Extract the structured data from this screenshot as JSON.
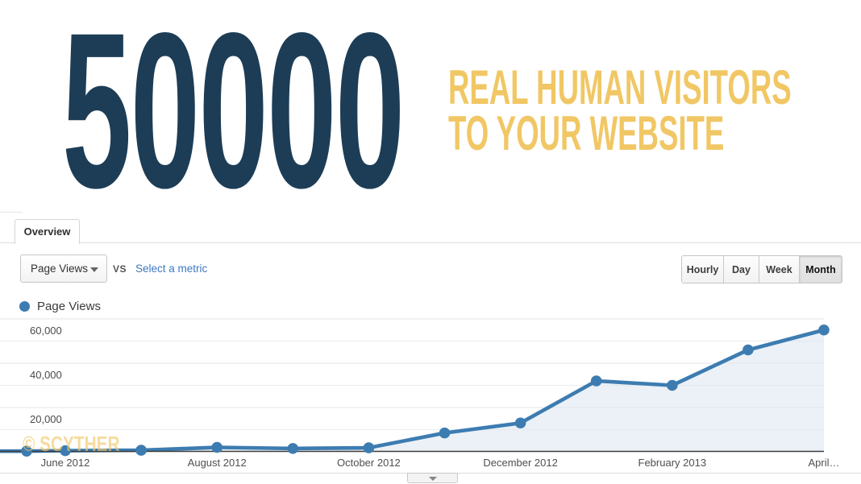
{
  "hero": {
    "number": "50000",
    "tagline_line1": "REAL HUMAN VISITORS",
    "tagline_line2": "TO YOUR WEBSITE",
    "number_color": "#1d3d56",
    "tagline_color": "#f1c765"
  },
  "watermark": "© SCYTHER",
  "watermark_color": "rgba(242,199,106,0.65)",
  "panel": {
    "tab_label": "Overview",
    "metric_dropdown": {
      "value": "Page Views"
    },
    "vs_label": "VS",
    "select_metric_link": "Select a metric",
    "granularity_buttons": [
      {
        "label": "Hourly",
        "selected": false
      },
      {
        "label": "Day",
        "selected": false
      },
      {
        "label": "Week",
        "selected": false
      },
      {
        "label": "Month",
        "selected": true
      }
    ],
    "legend_label": "Page Views"
  },
  "chart_data": {
    "type": "area",
    "title": "Page Views over time",
    "series": [
      {
        "name": "Page Views",
        "values": [
          300,
          500,
          700,
          2000,
          1500,
          1800,
          8500,
          13000,
          32000,
          30000,
          46000,
          55000
        ]
      }
    ],
    "x": [
      "May 2012",
      "June 2012",
      "July 2012",
      "August 2012",
      "September 2012",
      "October 2012",
      "November 2012",
      "December 2012",
      "January 2013",
      "February 2013",
      "March 2013",
      "April 2013"
    ],
    "y_tick_labels": [
      "60,000",
      "40,000",
      "20,000"
    ],
    "x_axis_labels": [
      {
        "text": "June 2012",
        "index": 1
      },
      {
        "text": "August 2012",
        "index": 3
      },
      {
        "text": "October 2012",
        "index": 5
      },
      {
        "text": "December 2012",
        "index": 7
      },
      {
        "text": "February 2013",
        "index": 9
      },
      {
        "text": "April…",
        "index": 11
      }
    ],
    "ylim": [
      0,
      60000
    ],
    "grid": true,
    "legend_position": "top-left",
    "line_color": "#3d7cb1",
    "fill_color": "rgba(222,232,241,0.6)",
    "axis_color": "#3d3d3d"
  }
}
